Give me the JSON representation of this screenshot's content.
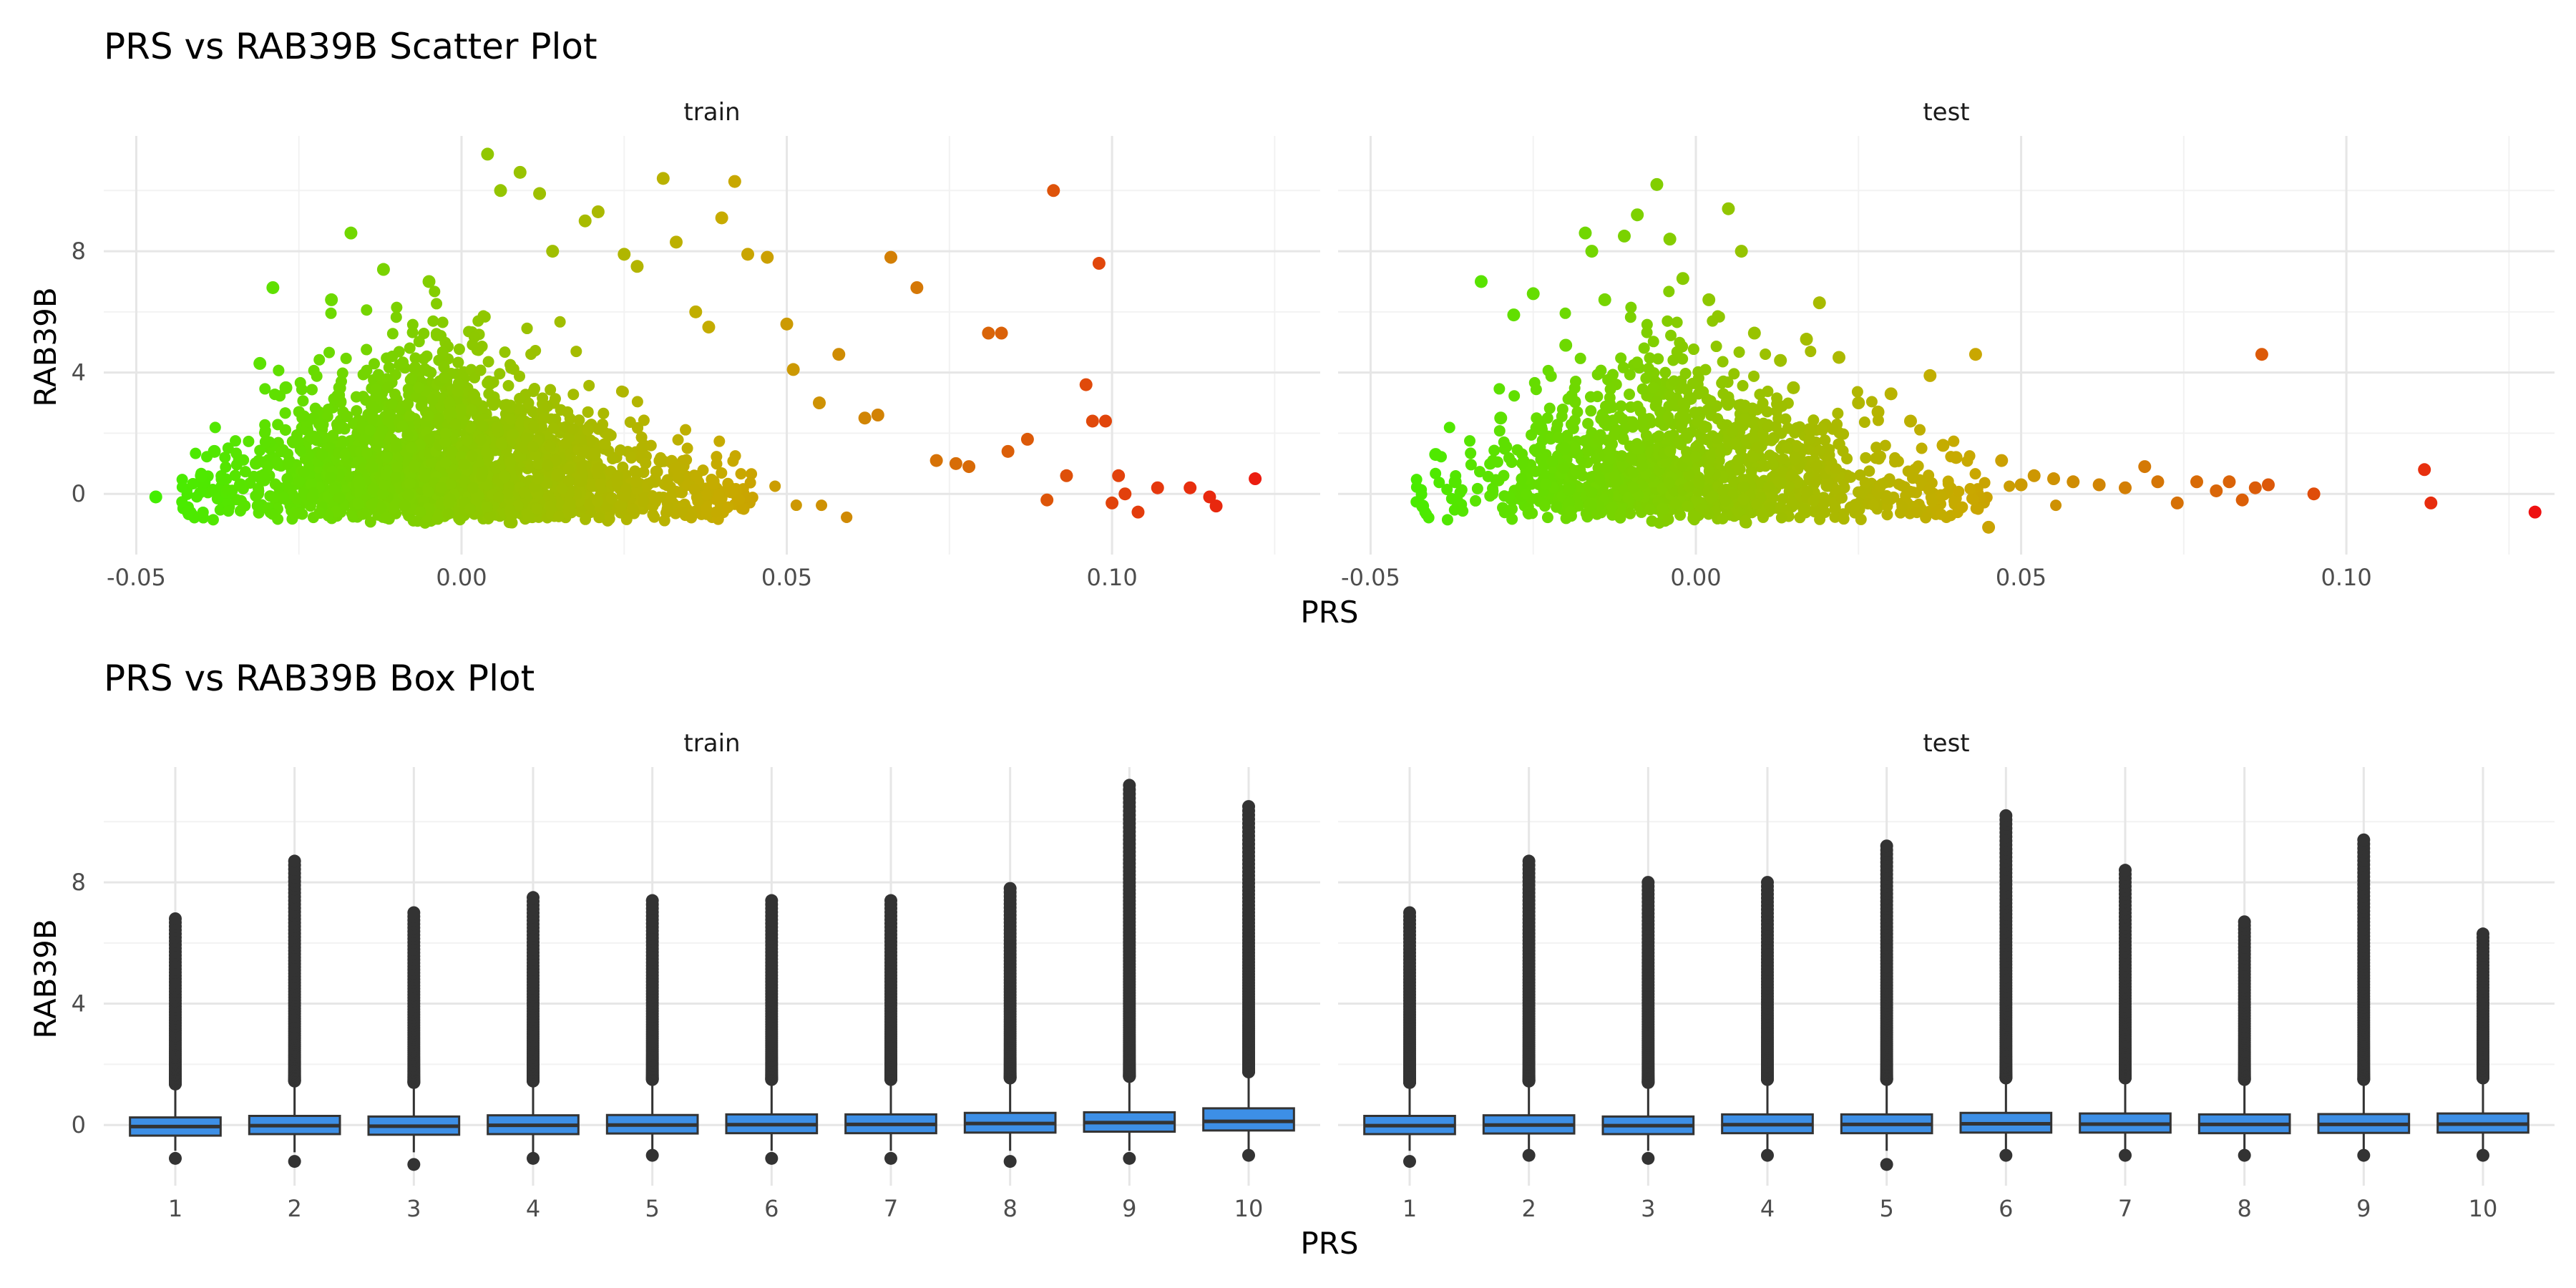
{
  "chart_data": [
    {
      "type": "scatter",
      "title": "PRS vs RAB39B Scatter Plot",
      "xlabel": "PRS",
      "ylabel": "RAB39B",
      "facets": [
        "train",
        "test"
      ],
      "xlim": [
        -0.055,
        0.132
      ],
      "ylim": [
        -2.0,
        11.8
      ],
      "x_ticks": [
        -0.05,
        0.0,
        0.05,
        0.1
      ],
      "x_tick_labels": [
        "-0.05",
        "0.00",
        "0.05",
        "0.10"
      ],
      "y_ticks": [
        0,
        4,
        8
      ],
      "y_tick_labels": [
        "0",
        "4",
        "8"
      ],
      "grid": true,
      "color_scale": {
        "low": "#44ee00",
        "mid": "#c8aa00",
        "high": "#ee1111",
        "by": "PRS"
      },
      "highlight_points": {
        "train": [
          [
            -0.047,
            -0.1
          ],
          [
            -0.042,
            -0.6
          ],
          [
            -0.04,
            0.6
          ],
          [
            -0.038,
            1.4
          ],
          [
            -0.034,
            0.3
          ],
          [
            -0.031,
            4.3
          ],
          [
            -0.029,
            6.8
          ],
          [
            -0.027,
            3.5
          ],
          [
            -0.02,
            6.4
          ],
          [
            -0.017,
            8.6
          ],
          [
            -0.012,
            7.4
          ],
          [
            -0.005,
            7.0
          ],
          [
            0.004,
            11.2
          ],
          [
            0.006,
            10.0
          ],
          [
            0.009,
            10.6
          ],
          [
            0.012,
            9.9
          ],
          [
            0.014,
            8.0
          ],
          [
            0.019,
            9.0
          ],
          [
            0.021,
            9.3
          ],
          [
            0.025,
            7.9
          ],
          [
            0.027,
            7.5
          ],
          [
            0.031,
            10.4
          ],
          [
            0.033,
            8.3
          ],
          [
            0.036,
            6.0
          ],
          [
            0.038,
            5.5
          ],
          [
            0.04,
            9.1
          ],
          [
            0.042,
            10.3
          ],
          [
            0.044,
            7.9
          ],
          [
            0.047,
            7.8
          ],
          [
            0.05,
            5.6
          ],
          [
            0.051,
            4.1
          ],
          [
            0.055,
            3.0
          ],
          [
            0.058,
            4.6
          ],
          [
            0.062,
            2.5
          ],
          [
            0.064,
            2.6
          ],
          [
            0.066,
            7.8
          ],
          [
            0.07,
            6.8
          ],
          [
            0.073,
            1.1
          ],
          [
            0.076,
            1.0
          ],
          [
            0.078,
            0.9
          ],
          [
            0.081,
            5.3
          ],
          [
            0.083,
            5.3
          ],
          [
            0.084,
            1.4
          ],
          [
            0.087,
            1.8
          ],
          [
            0.09,
            -0.2
          ],
          [
            0.091,
            10.0
          ],
          [
            0.093,
            0.6
          ],
          [
            0.096,
            3.6
          ],
          [
            0.097,
            2.4
          ],
          [
            0.098,
            7.6
          ],
          [
            0.099,
            2.4
          ],
          [
            0.1,
            -0.3
          ],
          [
            0.101,
            0.6
          ],
          [
            0.102,
            0.0
          ],
          [
            0.104,
            -0.6
          ],
          [
            0.107,
            0.2
          ],
          [
            0.112,
            0.2
          ],
          [
            0.115,
            -0.1
          ],
          [
            0.116,
            -0.4
          ],
          [
            0.122,
            0.5
          ]
        ],
        "test": [
          [
            -0.042,
            -0.4
          ],
          [
            -0.04,
            1.3
          ],
          [
            -0.037,
            0.4
          ],
          [
            -0.033,
            7.0
          ],
          [
            -0.03,
            2.5
          ],
          [
            -0.028,
            5.9
          ],
          [
            -0.025,
            6.6
          ],
          [
            -0.02,
            4.9
          ],
          [
            -0.017,
            8.6
          ],
          [
            -0.016,
            8.0
          ],
          [
            -0.014,
            6.4
          ],
          [
            -0.011,
            8.5
          ],
          [
            -0.009,
            9.2
          ],
          [
            -0.006,
            10.2
          ],
          [
            -0.004,
            8.4
          ],
          [
            -0.002,
            7.1
          ],
          [
            0.002,
            6.4
          ],
          [
            0.005,
            9.4
          ],
          [
            0.007,
            8.0
          ],
          [
            0.009,
            5.3
          ],
          [
            0.013,
            4.4
          ],
          [
            0.015,
            3.5
          ],
          [
            0.017,
            5.1
          ],
          [
            0.019,
            6.3
          ],
          [
            0.022,
            4.5
          ],
          [
            0.025,
            3.0
          ],
          [
            0.028,
            2.7
          ],
          [
            0.03,
            3.3
          ],
          [
            0.033,
            2.4
          ],
          [
            0.036,
            3.9
          ],
          [
            0.038,
            1.6
          ],
          [
            0.04,
            1.2
          ],
          [
            0.043,
            4.6
          ],
          [
            0.045,
            -1.1
          ],
          [
            0.047,
            1.1
          ],
          [
            0.05,
            0.3
          ],
          [
            0.052,
            0.6
          ],
          [
            0.055,
            0.5
          ],
          [
            0.058,
            0.4
          ],
          [
            0.062,
            0.3
          ],
          [
            0.066,
            0.2
          ],
          [
            0.069,
            0.9
          ],
          [
            0.071,
            0.4
          ],
          [
            0.074,
            -0.3
          ],
          [
            0.077,
            0.4
          ],
          [
            0.08,
            0.1
          ],
          [
            0.082,
            0.4
          ],
          [
            0.084,
            -0.2
          ],
          [
            0.086,
            0.2
          ],
          [
            0.087,
            4.6
          ],
          [
            0.088,
            0.3
          ],
          [
            0.095,
            0.0
          ],
          [
            0.112,
            0.8
          ],
          [
            0.113,
            -0.3
          ],
          [
            0.129,
            -0.6
          ]
        ]
      }
    },
    {
      "type": "box",
      "title": "PRS vs RAB39B Box Plot",
      "xlabel": "PRS",
      "ylabel": "RAB39B",
      "facets": [
        "train",
        "test"
      ],
      "categories": [
        "1",
        "2",
        "3",
        "4",
        "5",
        "6",
        "7",
        "8",
        "9",
        "10"
      ],
      "ylim": [
        -2.0,
        11.8
      ],
      "y_ticks": [
        0,
        4,
        8
      ],
      "y_tick_labels": [
        "0",
        "4",
        "8"
      ],
      "fill_color": "#3d8fe6",
      "grid": true,
      "boxes": {
        "train": [
          {
            "q1": -0.35,
            "median": -0.05,
            "q3": 0.25,
            "whisker_low": -0.85,
            "whisker_high": 1.2,
            "outlier_max": 6.8,
            "outlier_min": -1.1
          },
          {
            "q1": -0.3,
            "median": -0.02,
            "q3": 0.3,
            "whisker_low": -0.9,
            "whisker_high": 1.3,
            "outlier_max": 8.7,
            "outlier_min": -1.2
          },
          {
            "q1": -0.32,
            "median": -0.04,
            "q3": 0.28,
            "whisker_low": -0.9,
            "whisker_high": 1.25,
            "outlier_max": 7.0,
            "outlier_min": -1.3
          },
          {
            "q1": -0.3,
            "median": -0.01,
            "q3": 0.32,
            "whisker_low": -0.9,
            "whisker_high": 1.3,
            "outlier_max": 7.5,
            "outlier_min": -1.1
          },
          {
            "q1": -0.28,
            "median": 0.0,
            "q3": 0.33,
            "whisker_low": -0.85,
            "whisker_high": 1.35,
            "outlier_max": 7.4,
            "outlier_min": -1.0
          },
          {
            "q1": -0.27,
            "median": 0.01,
            "q3": 0.35,
            "whisker_low": -0.85,
            "whisker_high": 1.35,
            "outlier_max": 7.4,
            "outlier_min": -1.1
          },
          {
            "q1": -0.27,
            "median": 0.02,
            "q3": 0.35,
            "whisker_low": -0.85,
            "whisker_high": 1.35,
            "outlier_max": 7.4,
            "outlier_min": -1.1
          },
          {
            "q1": -0.25,
            "median": 0.05,
            "q3": 0.4,
            "whisker_low": -0.85,
            "whisker_high": 1.4,
            "outlier_max": 7.8,
            "outlier_min": -1.2
          },
          {
            "q1": -0.22,
            "median": 0.08,
            "q3": 0.42,
            "whisker_low": -0.85,
            "whisker_high": 1.45,
            "outlier_max": 11.2,
            "outlier_min": -1.1
          },
          {
            "q1": -0.18,
            "median": 0.12,
            "q3": 0.55,
            "whisker_low": -0.85,
            "whisker_high": 1.6,
            "outlier_max": 10.5,
            "outlier_min": -1.0
          }
        ],
        "test": [
          {
            "q1": -0.3,
            "median": -0.02,
            "q3": 0.3,
            "whisker_low": -0.85,
            "whisker_high": 1.25,
            "outlier_max": 7.0,
            "outlier_min": -1.2
          },
          {
            "q1": -0.28,
            "median": 0.0,
            "q3": 0.32,
            "whisker_low": -0.85,
            "whisker_high": 1.3,
            "outlier_max": 8.7,
            "outlier_min": -1.0
          },
          {
            "q1": -0.3,
            "median": -0.02,
            "q3": 0.28,
            "whisker_low": -0.85,
            "whisker_high": 1.25,
            "outlier_max": 8.0,
            "outlier_min": -1.1
          },
          {
            "q1": -0.27,
            "median": 0.01,
            "q3": 0.35,
            "whisker_low": -0.85,
            "whisker_high": 1.35,
            "outlier_max": 8.0,
            "outlier_min": -1.0
          },
          {
            "q1": -0.27,
            "median": 0.02,
            "q3": 0.35,
            "whisker_low": -0.85,
            "whisker_high": 1.35,
            "outlier_max": 9.2,
            "outlier_min": -1.3
          },
          {
            "q1": -0.25,
            "median": 0.04,
            "q3": 0.4,
            "whisker_low": -0.85,
            "whisker_high": 1.4,
            "outlier_max": 10.2,
            "outlier_min": -1.0
          },
          {
            "q1": -0.25,
            "median": 0.03,
            "q3": 0.38,
            "whisker_low": -0.85,
            "whisker_high": 1.4,
            "outlier_max": 8.4,
            "outlier_min": -1.0
          },
          {
            "q1": -0.27,
            "median": 0.02,
            "q3": 0.35,
            "whisker_low": -0.85,
            "whisker_high": 1.35,
            "outlier_max": 6.7,
            "outlier_min": -1.0
          },
          {
            "q1": -0.26,
            "median": 0.02,
            "q3": 0.36,
            "whisker_low": -0.85,
            "whisker_high": 1.35,
            "outlier_max": 9.4,
            "outlier_min": -1.0
          },
          {
            "q1": -0.25,
            "median": 0.03,
            "q3": 0.38,
            "whisker_low": -0.85,
            "whisker_high": 1.4,
            "outlier_max": 6.3,
            "outlier_min": -1.0
          }
        ]
      }
    }
  ]
}
